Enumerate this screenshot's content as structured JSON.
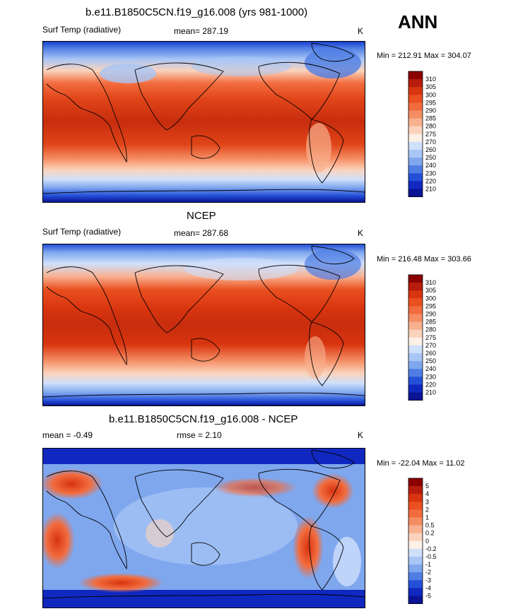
{
  "header": {
    "season": "ANN"
  },
  "panels": [
    {
      "id": "model",
      "title": "b.e11.B1850C5CN.f19_g16.008 (yrs 981-1000)",
      "left_label": "Surf Temp (radiative)",
      "center_label": "mean= 287.19",
      "units": "K",
      "minmax": "Min = 212.91 Max = 304.07"
    },
    {
      "id": "obs",
      "title": "NCEP",
      "left_label": "Surf Temp (radiative)",
      "center_label": "mean= 287.68",
      "units": "K",
      "minmax": "Min = 216.48 Max = 303.66"
    },
    {
      "id": "diff",
      "title": "b.e11.B1850C5CN.f19_g16.008 - NCEP",
      "left_label": "mean =  -0.49",
      "center_label": "rmse =   2.10",
      "units": "K",
      "minmax": "Min = -22.04 Max =  11.02"
    }
  ],
  "colorbars": {
    "abs": {
      "labels": [
        "310",
        "305",
        "300",
        "295",
        "290",
        "285",
        "280",
        "275",
        "270",
        "260",
        "250",
        "240",
        "230",
        "220",
        "210"
      ],
      "colors": [
        "#8b0000",
        "#b71c0c",
        "#d8340f",
        "#ea5020",
        "#f26c3e",
        "#f58d63",
        "#f8b08f",
        "#fbd3bc",
        "#fdf0e6",
        "#cfe0fb",
        "#a8c6f6",
        "#7fa7ee",
        "#4f7de4",
        "#2450d8",
        "#1028bf",
        "#0a1494"
      ]
    },
    "diff": {
      "labels": [
        "5",
        "4",
        "3",
        "2",
        "1",
        "0.5",
        "0.2",
        "0",
        "-0.2",
        "-0.5",
        "-1",
        "-2",
        "-3",
        "-4",
        "-5"
      ],
      "colors": [
        "#8b0000",
        "#b71c0c",
        "#d8340f",
        "#ea5020",
        "#f26c3e",
        "#f58d63",
        "#f8b08f",
        "#fbd3bc",
        "#fdf0e6",
        "#cfe0fb",
        "#a8c6f6",
        "#7fa7ee",
        "#4f7de4",
        "#2450d8",
        "#1028bf",
        "#0a1494"
      ]
    }
  }
}
